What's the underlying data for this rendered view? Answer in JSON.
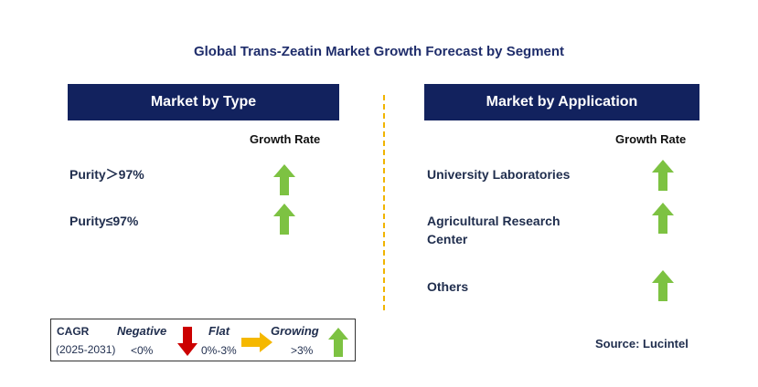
{
  "title": "Global Trans-Zeatin Market Growth Forecast by Segment",
  "left_panel": {
    "header": "Market by Type",
    "growth_label": "Growth Rate",
    "items": [
      {
        "label": "Purity＞97%",
        "trend": "growing"
      },
      {
        "label": "Purity≤97%",
        "trend": "growing"
      }
    ]
  },
  "right_panel": {
    "header": "Market by Application",
    "growth_label": "Growth Rate",
    "items": [
      {
        "label_line1": "University Laboratories",
        "label_line2": "",
        "trend": "growing"
      },
      {
        "label_line1": "Agricultural Research",
        "label_line2": "Center",
        "trend": "growing"
      },
      {
        "label_line1": "Others",
        "label_line2": "",
        "trend": "growing"
      }
    ]
  },
  "legend": {
    "cagr": "CAGR",
    "period": "(2025-2031)",
    "negative_label": "Negative",
    "negative_range": "<0%",
    "flat_label": "Flat",
    "flat_range": "0%-3%",
    "growing_label": "Growing",
    "growing_range": ">3%"
  },
  "source": "Source: Lucintel",
  "colors": {
    "header_bg": "#12225e",
    "growing_arrow": "#7dc242",
    "negative_arrow": "#cc0000",
    "flat_arrow": "#f5b800",
    "divider": "#f0b400"
  }
}
